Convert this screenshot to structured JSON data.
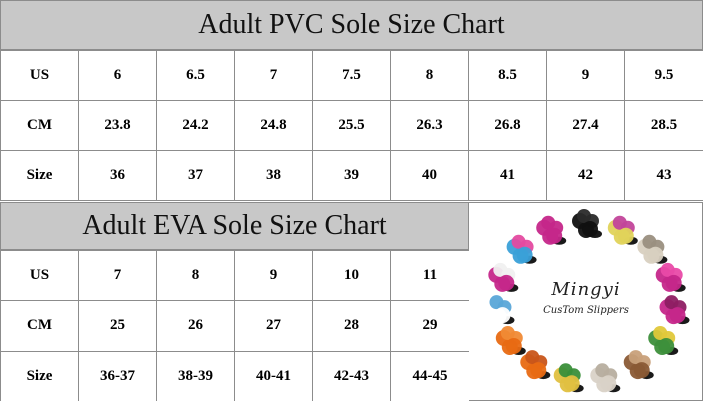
{
  "pvc": {
    "title": "Adult PVC Sole Size Chart",
    "rows": [
      {
        "label": "US",
        "values": [
          "6",
          "6.5",
          "7",
          "7.5",
          "8",
          "8.5",
          "9",
          "9.5"
        ]
      },
      {
        "label": "CM",
        "values": [
          "23.8",
          "24.2",
          "24.8",
          "25.5",
          "26.3",
          "26.8",
          "27.4",
          "28.5"
        ]
      },
      {
        "label": "Size",
        "values": [
          "36",
          "37",
          "38",
          "39",
          "40",
          "41",
          "42",
          "43"
        ]
      }
    ]
  },
  "eva": {
    "title": "Adult EVA Sole Size Chart",
    "rows": [
      {
        "label": "US",
        "values": [
          "7",
          "8",
          "9",
          "10",
          "11"
        ]
      },
      {
        "label": "CM",
        "values": [
          "25",
          "26",
          "27",
          "28",
          "29"
        ]
      },
      {
        "label": "Size",
        "values": [
          "36-37",
          "38-39",
          "40-41",
          "42-43",
          "44-45"
        ]
      }
    ]
  },
  "brand": {
    "name": "Mingyi",
    "tagline": "CusTom Slippers"
  },
  "colors": {
    "header_bg": "#c8c8c8",
    "border": "#8c8c8c"
  }
}
